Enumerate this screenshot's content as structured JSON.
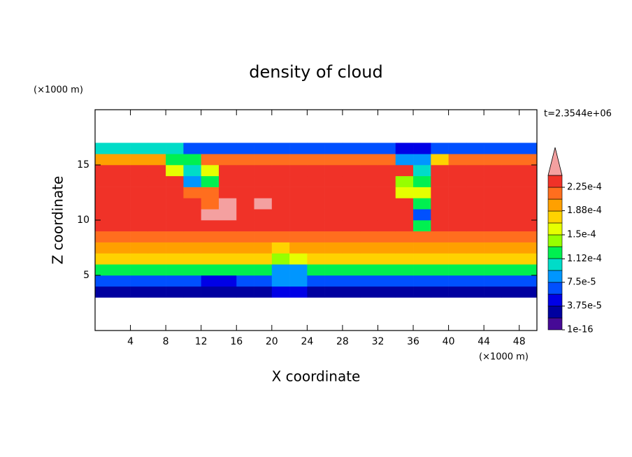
{
  "chart_data": {
    "type": "contour",
    "title": "density of cloud",
    "xlabel": "X coordinate",
    "ylabel": "Z coordinate",
    "xunit_label": "(×1000 m)",
    "yunit_label": "(×1000 m)",
    "annotation": "t=2.3544e+06",
    "xlim": [
      0,
      50
    ],
    "ylim": [
      0,
      20
    ],
    "xticks": [
      4,
      8,
      12,
      16,
      20,
      24,
      28,
      32,
      36,
      40,
      44,
      48
    ],
    "yticks": [
      5,
      10,
      15
    ],
    "x": [
      1,
      3,
      5,
      7,
      9,
      11,
      13,
      15,
      17,
      19,
      21,
      23,
      25,
      27,
      29,
      31,
      33,
      35,
      37,
      39,
      41,
      43,
      45,
      47,
      49
    ],
    "y": [
      3.5,
      4.5,
      5.5,
      6.5,
      7.5,
      8.5,
      9.5,
      10.5,
      11.5,
      12.5,
      13.5,
      14.5,
      15.5,
      16.5
    ],
    "values": [
      [
        2e-05,
        2e-05,
        2e-05,
        2e-05,
        2e-05,
        2e-05,
        2e-05,
        2e-05,
        2e-05,
        2e-05,
        5e-05,
        4e-05,
        2e-05,
        2e-05,
        2e-05,
        2e-05,
        2e-05,
        2e-05,
        2e-05,
        2e-05,
        2e-05,
        2e-05,
        2e-05,
        2e-05,
        2e-05
      ],
      [
        6e-05,
        6e-05,
        6e-05,
        6e-05,
        6e-05,
        6e-05,
        4e-05,
        4e-05,
        6e-05,
        6e-05,
        8e-05,
        8e-05,
        6e-05,
        6e-05,
        6e-05,
        6e-05,
        6e-05,
        6e-05,
        6e-05,
        6e-05,
        6e-05,
        6e-05,
        6e-05,
        6e-05,
        6e-05
      ],
      [
        0.00013,
        0.00013,
        0.00013,
        0.00013,
        0.00013,
        0.00013,
        0.00013,
        0.00013,
        0.00013,
        0.00013,
        9e-05,
        9e-05,
        0.00013,
        0.00013,
        0.00013,
        0.00013,
        0.00013,
        0.00013,
        0.00013,
        0.00013,
        0.00013,
        0.00013,
        0.00013,
        0.00013,
        0.00013
      ],
      [
        0.00017,
        0.00017,
        0.00017,
        0.00017,
        0.00017,
        0.00017,
        0.00017,
        0.00017,
        0.00017,
        0.00017,
        0.00014,
        0.00015,
        0.00017,
        0.00017,
        0.00017,
        0.00017,
        0.00017,
        0.00017,
        0.00017,
        0.00017,
        0.00017,
        0.00017,
        0.00017,
        0.00017,
        0.00017
      ],
      [
        0.0002,
        0.0002,
        0.0002,
        0.0002,
        0.0002,
        0.0002,
        0.0002,
        0.0002,
        0.0002,
        0.0002,
        0.00018,
        0.00019,
        0.0002,
        0.0002,
        0.0002,
        0.0002,
        0.0002,
        0.0002,
        0.0002,
        0.0002,
        0.0002,
        0.0002,
        0.0002,
        0.0002,
        0.0002
      ],
      [
        0.00022,
        0.00022,
        0.00022,
        0.00022,
        0.00022,
        0.00022,
        0.00022,
        0.00022,
        0.00022,
        0.00022,
        0.00022,
        0.00022,
        0.00022,
        0.00022,
        0.00022,
        0.00022,
        0.00022,
        0.00022,
        0.00022,
        0.00022,
        0.00022,
        0.00022,
        0.00022,
        0.00022,
        0.00022
      ],
      [
        0.000235,
        0.000235,
        0.000235,
        0.000235,
        0.000235,
        0.000235,
        0.000235,
        0.000235,
        0.000235,
        0.000235,
        0.000235,
        0.000235,
        0.000235,
        0.000235,
        0.000235,
        0.000235,
        0.000235,
        0.000235,
        0.00013,
        0.000235,
        0.000235,
        0.000235,
        0.000235,
        0.000235,
        0.000235
      ],
      [
        0.000235,
        0.000235,
        0.000235,
        0.000235,
        0.000235,
        0.000235,
        0.00025,
        0.00025,
        0.000235,
        0.000235,
        0.000235,
        0.000235,
        0.000235,
        0.000235,
        0.000235,
        0.000235,
        0.000235,
        0.000235,
        6e-05,
        0.000235,
        0.000235,
        0.000235,
        0.000235,
        0.000235,
        0.000235
      ],
      [
        0.000235,
        0.000235,
        0.000235,
        0.000235,
        0.000235,
        0.000235,
        0.00022,
        0.00025,
        0.000235,
        0.00025,
        0.000235,
        0.000235,
        0.000235,
        0.000235,
        0.000235,
        0.000235,
        0.000235,
        0.000235,
        0.00012,
        0.000235,
        0.000235,
        0.000235,
        0.000235,
        0.000235,
        0.000235
      ],
      [
        0.000235,
        0.000235,
        0.000235,
        0.000235,
        0.000235,
        0.00021,
        0.00021,
        0.000235,
        0.000235,
        0.000235,
        0.000235,
        0.000235,
        0.000235,
        0.000235,
        0.000235,
        0.000235,
        0.000235,
        0.00016,
        0.00016,
        0.000235,
        0.000235,
        0.000235,
        0.000235,
        0.000235,
        0.000235
      ],
      [
        0.00023,
        0.00023,
        0.00023,
        0.00023,
        0.00023,
        8e-05,
        0.00012,
        0.00023,
        0.00023,
        0.00023,
        0.00023,
        0.00023,
        0.00023,
        0.00023,
        0.00023,
        0.00023,
        0.00023,
        0.00014,
        0.00012,
        0.00023,
        0.00023,
        0.00023,
        0.00023,
        0.00023,
        0.00023
      ],
      [
        0.000225,
        0.000225,
        0.000225,
        0.000225,
        0.00015,
        0.0001,
        0.00016,
        0.000225,
        0.000225,
        0.000225,
        0.000225,
        0.000225,
        0.000225,
        0.000225,
        0.000225,
        0.000225,
        0.000225,
        0.000225,
        0.00011,
        0.000225,
        0.000225,
        0.000225,
        0.000225,
        0.000225,
        0.000225
      ],
      [
        0.0002,
        0.0002,
        0.0002,
        0.0002,
        0.00013,
        0.00013,
        0.00021,
        0.00021,
        0.00021,
        0.00021,
        0.00021,
        0.00021,
        0.00021,
        0.00021,
        0.00021,
        0.00021,
        0.00021,
        9e-05,
        9e-05,
        0.00018,
        0.00021,
        0.00021,
        0.00021,
        0.00021,
        0.00021
      ],
      [
        0.0001,
        0.0001,
        0.0001,
        0.0001,
        0.0001,
        6e-05,
        6e-05,
        6e-05,
        6e-05,
        6e-05,
        6e-05,
        6e-05,
        6e-05,
        6e-05,
        6e-05,
        6e-05,
        6e-05,
        4e-05,
        4e-05,
        6e-05,
        6e-05,
        6e-05,
        6e-05,
        6e-05,
        6e-05
      ]
    ],
    "levels": [
      1e-16,
      1.875e-05,
      3.75e-05,
      5.625e-05,
      7.5e-05,
      9.375e-05,
      0.0001125,
      0.00013125,
      0.00015,
      0.00016875,
      0.0001875,
      0.00020625,
      0.000225,
      0.00024375
    ],
    "colors": [
      "#460a96",
      "#0000a0",
      "#0000e6",
      "#0050ff",
      "#0096ff",
      "#00dcc8",
      "#00f050",
      "#96ff00",
      "#e6ff00",
      "#ffd200",
      "#ffa000",
      "#ff6e1e",
      "#f03228"
    ],
    "over_color": "#f4a0a0",
    "cticks": [
      {
        "value": 1e-16,
        "label": "1e-16"
      },
      {
        "value": 3.75e-05,
        "label": "3.75e-5"
      },
      {
        "value": 7.5e-05,
        "label": "7.5e-5"
      },
      {
        "value": 0.000112,
        "label": "1.12e-4"
      },
      {
        "value": 0.00015,
        "label": "1.5e-4"
      },
      {
        "value": 0.000188,
        "label": "1.88e-4"
      },
      {
        "value": 0.000225,
        "label": "2.25e-4"
      }
    ]
  }
}
